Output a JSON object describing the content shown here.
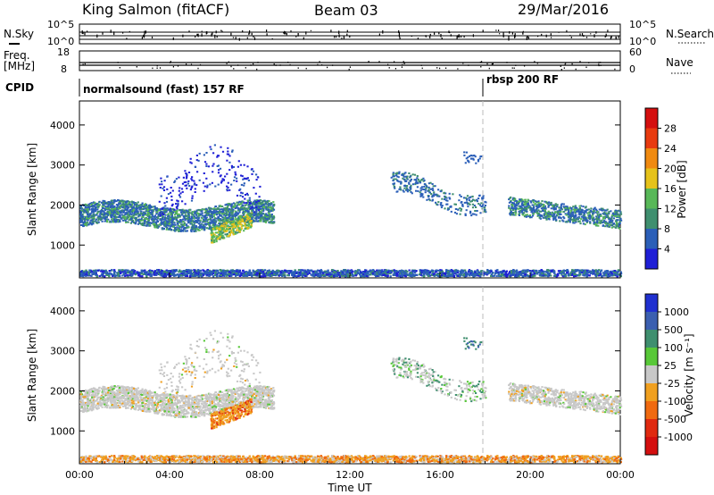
{
  "header": {
    "station": "King Salmon (fitACF)",
    "beam": "Beam 03",
    "date": "29/Mar/2016"
  },
  "status_panels": {
    "nsky_label": "N.Sky",
    "nsearch_label": "N.Search",
    "nsky_ticks": [
      "10^5",
      "10^0"
    ],
    "nsearch_ticks": [
      "10^5",
      "10^0"
    ],
    "freq_label_1": "Freq.",
    "freq_label_2": "[MHz]",
    "freq_ticks": [
      "18",
      "8"
    ],
    "nave_label": "Nave",
    "nave_ticks": [
      "60",
      "0"
    ],
    "cpid_label": "CPID",
    "cpid_1": "normalsound (fast) 157 RF",
    "cpid_2": "rbsp 200 RF",
    "cpid_switch_time_h": 18.0
  },
  "chart_data": [
    {
      "type": "heatmap",
      "title": "",
      "ylabel": "Slant Range [km]",
      "xlabel": "",
      "x_range_h": [
        0,
        24
      ],
      "ylim": [
        180,
        4600
      ],
      "yticks": [
        "1000",
        "2000",
        "3000",
        "4000"
      ],
      "colorbar": {
        "label": "Power [dB]",
        "ticks": [
          "4",
          "8",
          "12",
          "16",
          "20",
          "24",
          "28"
        ],
        "colors": [
          "#1f1fd6",
          "#2b5fb8",
          "#3f8f6f",
          "#58b858",
          "#e6c21a",
          "#f08a10",
          "#e83a0f",
          "#d40f0f"
        ]
      }
    },
    {
      "type": "heatmap",
      "title": "",
      "ylabel": "Slant Range [km]",
      "xlabel": "Time UT",
      "x_range_h": [
        0,
        24
      ],
      "ylim": [
        180,
        4600
      ],
      "yticks": [
        "1000",
        "2000",
        "3000",
        "4000"
      ],
      "xticks": [
        "00:00",
        "04:00",
        "08:00",
        "12:00",
        "16:00",
        "20:00",
        "00:00"
      ],
      "colorbar": {
        "label": "Velocity [m s⁻¹]",
        "ticks": [
          "1000",
          "500",
          "100",
          "25",
          "-25",
          "-100",
          "-500",
          "-1000"
        ],
        "colors": [
          "#2030d0",
          "#3b5fb0",
          "#3f8f6f",
          "#58c838",
          "#c8c8c8",
          "#f0a020",
          "#f06a10",
          "#e02a10",
          "#d40f0f"
        ]
      }
    }
  ]
}
